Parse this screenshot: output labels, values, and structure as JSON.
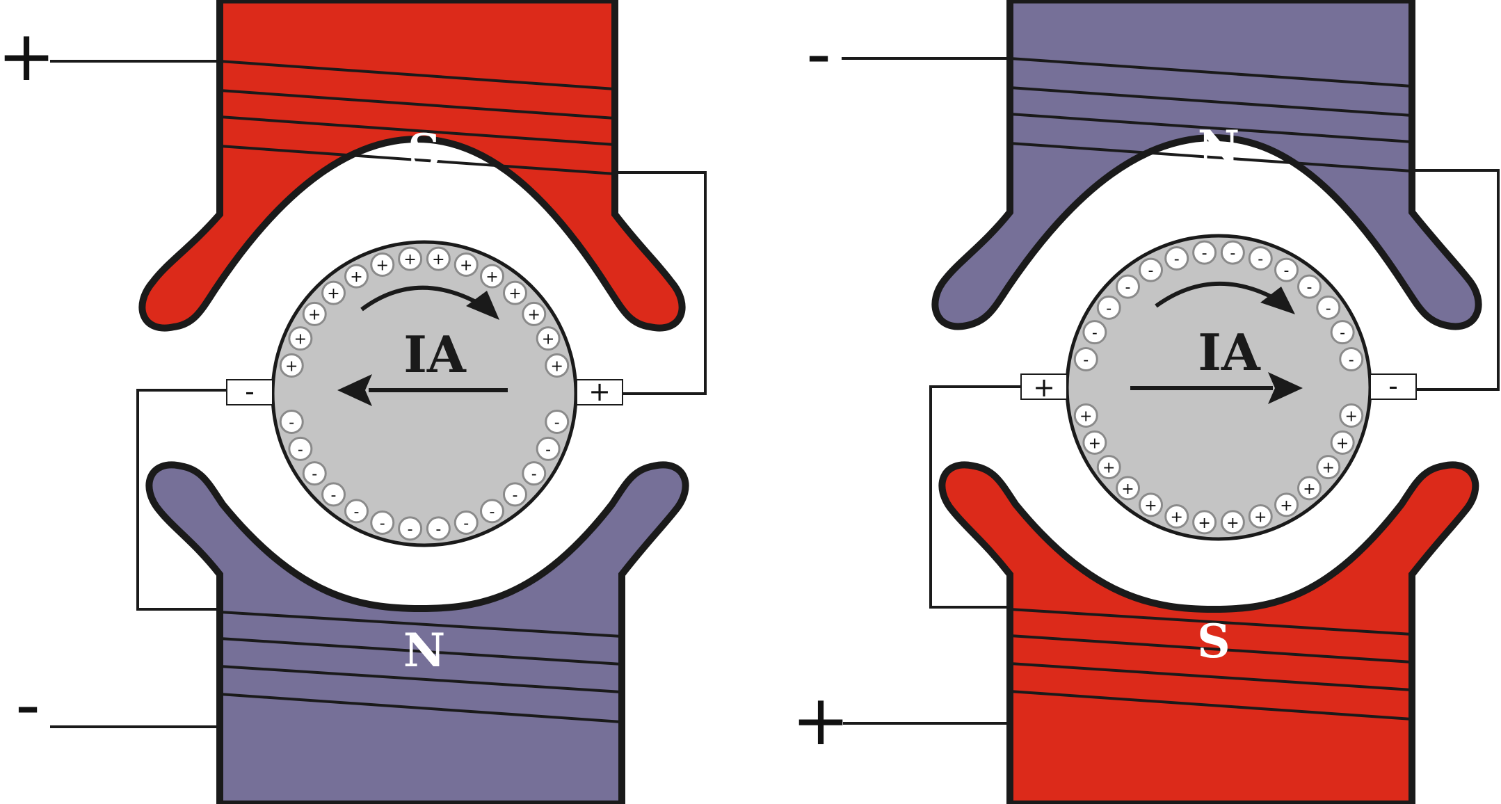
{
  "colors": {
    "south_pole": "#dc2a1a",
    "north_pole": "#767098",
    "armature": "#c4c4c4",
    "outline": "#1a1a1a",
    "conductor_fill": "#ffffff",
    "conductor_stroke": "#8a8a8a"
  },
  "left_machine": {
    "top_pole": {
      "letter": "S",
      "polarity": "south"
    },
    "bottom_pole": {
      "letter": "N",
      "polarity": "north"
    },
    "armature_label": "IA",
    "current_arrow_direction": "left",
    "rotation_arrow": "clockwise",
    "left_brush_sign": "-",
    "right_brush_sign": "+",
    "top_terminal_sign": "+",
    "bottom_terminal_sign": "-",
    "upper_conductors_sign": "+",
    "lower_conductors_sign": "-"
  },
  "right_machine": {
    "top_pole": {
      "letter": "N",
      "polarity": "north"
    },
    "bottom_pole": {
      "letter": "S",
      "polarity": "south"
    },
    "armature_label": "IA",
    "current_arrow_direction": "right",
    "rotation_arrow": "clockwise",
    "left_brush_sign": "+",
    "right_brush_sign": "-",
    "top_terminal_sign": "-",
    "bottom_terminal_sign": "+",
    "upper_conductors_sign": "-",
    "lower_conductors_sign": "+"
  }
}
